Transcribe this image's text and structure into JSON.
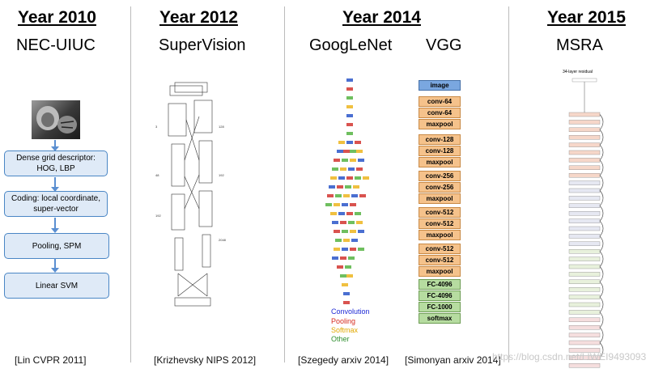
{
  "columns": [
    {
      "year": "Year 2010",
      "team": "NEC-UIUC",
      "citation": "[Lin CVPR 2011]"
    },
    {
      "year": "Year 2012",
      "team": "SuperVision",
      "citation": "[Krizhevsky NIPS 2012]"
    },
    {
      "year": "Year 2014",
      "team_a": "GoogLeNet",
      "team_b": "VGG",
      "citation_a": "[Szegedy arxiv 2014]",
      "citation_b": "[Simonyan arxiv 2014]"
    },
    {
      "year": "Year 2015",
      "team": "MSRA",
      "network_title": "34-layer residual"
    }
  ],
  "nec_pipeline": [
    "Dense grid descriptor: HOG, LBP",
    "Coding: local coordinate, super-vector",
    "Pooling, SPM",
    "Linear SVM"
  ],
  "googlenet_legend": [
    {
      "label": "Convolution",
      "color": "#1f2bd6"
    },
    {
      "label": "Pooling",
      "color": "#d62b1f"
    },
    {
      "label": "Softmax",
      "color": "#e0a800"
    },
    {
      "label": "Other",
      "color": "#2f8f2f"
    }
  ],
  "vgg_layers": [
    "image",
    "conv-64",
    "conv-64",
    "maxpool",
    "conv-128",
    "conv-128",
    "maxpool",
    "conv-256",
    "conv-256",
    "maxpool",
    "conv-512",
    "conv-512",
    "maxpool",
    "conv-512",
    "conv-512",
    "maxpool",
    "FC-4096",
    "FC-4096",
    "FC-1000",
    "softmax"
  ],
  "watermark": "https://blog.csdn.net/LIWEI9493093"
}
